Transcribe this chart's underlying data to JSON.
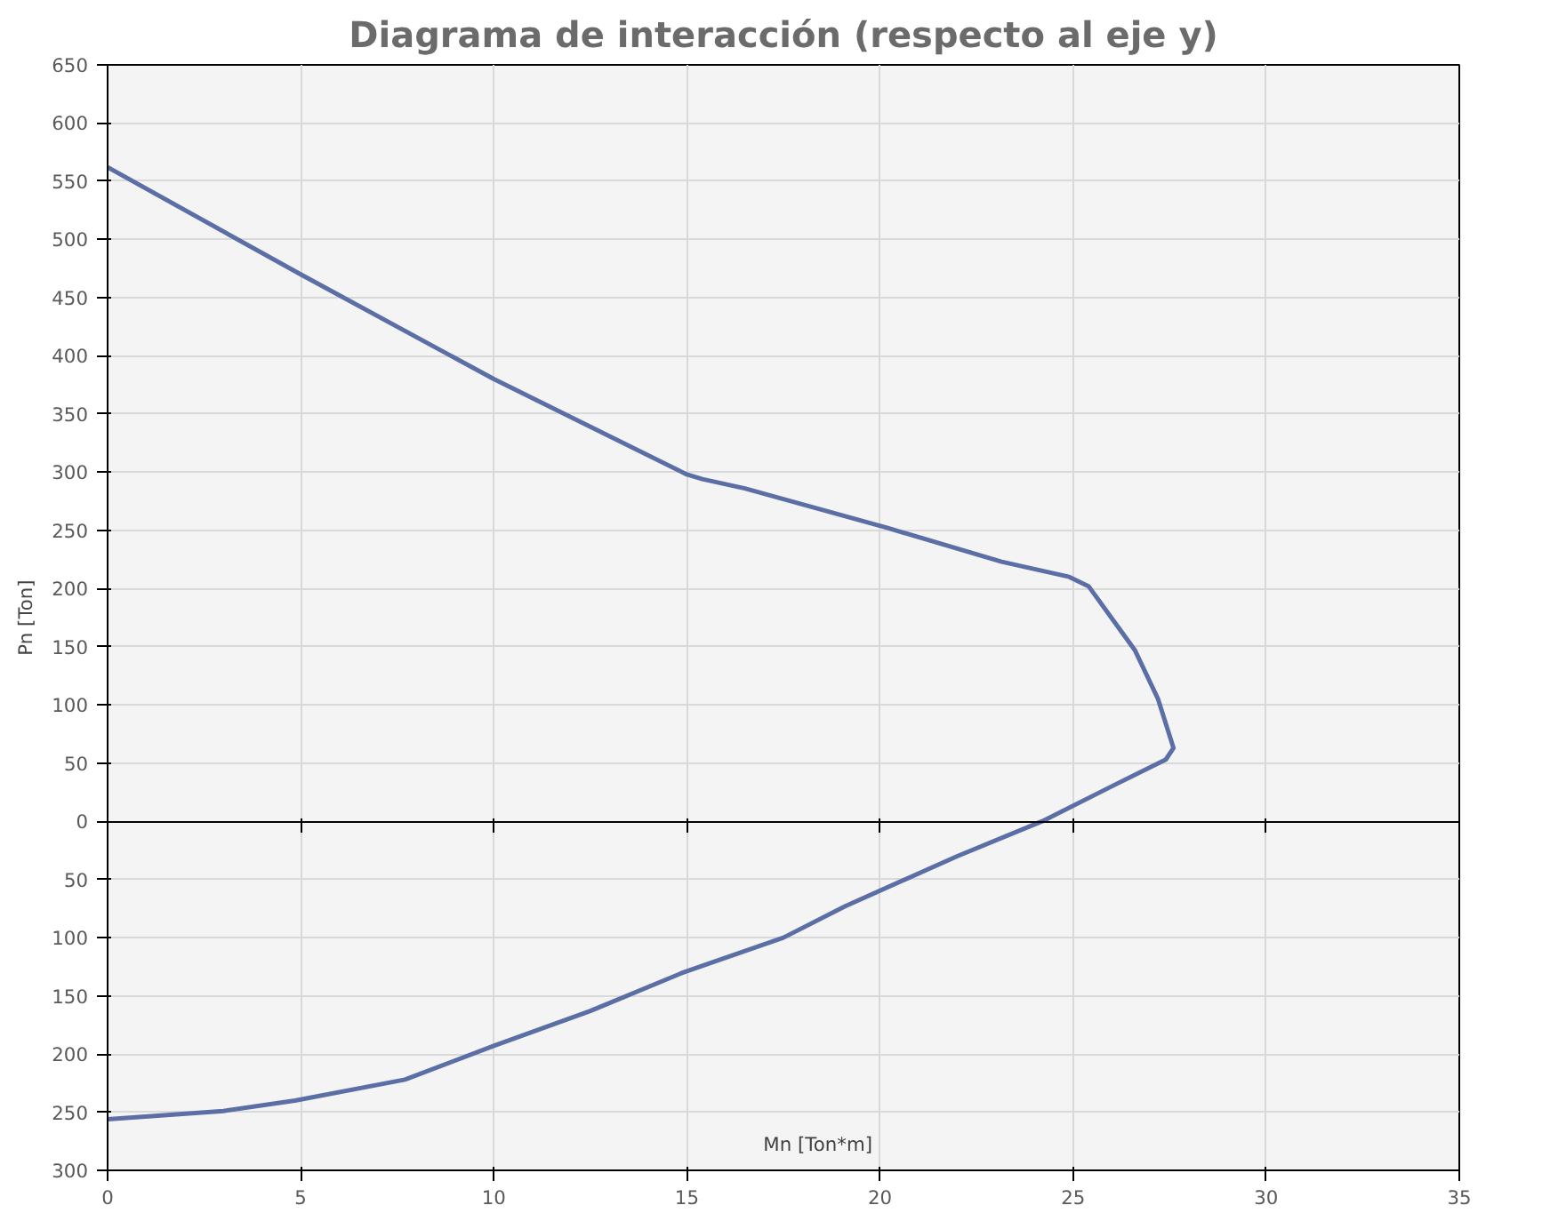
{
  "chart_data": {
    "type": "line",
    "title": "Diagrama de interacción (respecto al eje y)",
    "xlabel": "Mn [Ton*m]",
    "ylabel": "Pn [Ton]",
    "x": [
      0,
      5,
      10,
      15,
      15.4,
      16.5,
      20.2,
      23.15,
      24.9,
      25.4,
      26.6,
      27.2,
      27.6,
      27.4,
      26,
      24.2,
      22,
      19.1,
      17.5,
      14.9,
      12.5,
      10,
      7.7,
      4.85,
      3,
      0
    ],
    "series": [
      {
        "color": "#5b6fa6",
        "values": [
          562,
          470,
          380,
          298,
          294,
          286,
          252,
          223,
          210,
          202,
          147,
          105,
          63,
          53,
          30,
          0,
          -30,
          -73,
          -100,
          -130,
          -163,
          -193,
          -222,
          -240,
          -249,
          -256
        ]
      }
    ],
    "xlim": [
      0,
      35
    ],
    "xticks": [
      0,
      5,
      10,
      15,
      20,
      25,
      30,
      35
    ],
    "ylim": [
      -300,
      650
    ],
    "yticks": [
      {
        "value": -300,
        "label": "300"
      },
      {
        "value": -250,
        "label": "250"
      },
      {
        "value": -200,
        "label": "200"
      },
      {
        "value": -150,
        "label": "150"
      },
      {
        "value": -100,
        "label": "100"
      },
      {
        "value": -50,
        "label": "50"
      },
      0,
      50,
      100,
      150,
      200,
      250,
      300,
      350,
      400,
      450,
      500,
      550,
      600,
      650
    ],
    "grid": true,
    "marker": "none",
    "line_style": "solid"
  }
}
